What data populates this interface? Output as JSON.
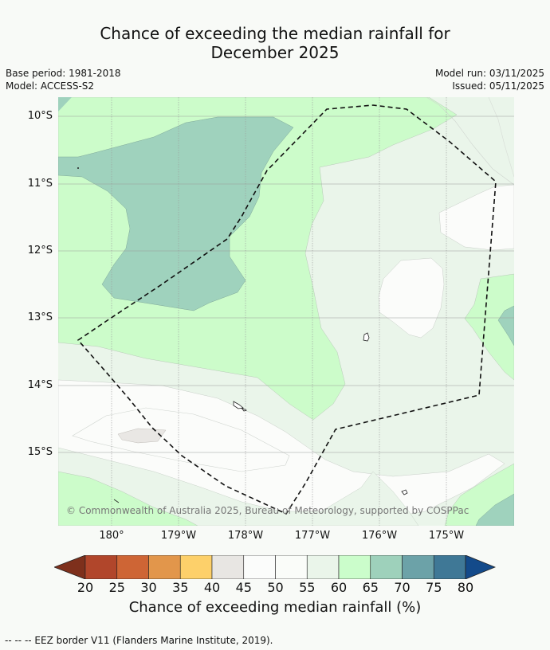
{
  "title": {
    "line1": "Chance of exceeding the median rainfall for",
    "line2": "December 2025"
  },
  "info": {
    "base_period": "Base period: 1981-2018",
    "model": "Model: ACCESS-S2",
    "model_run": "Model run: 03/11/2025",
    "issued": "Issued: 05/11/2025"
  },
  "map": {
    "lat_labels": [
      "10°S",
      "11°S",
      "12°S",
      "13°S",
      "14°S",
      "15°S"
    ],
    "lon_labels": [
      "180°",
      "179°W",
      "178°W",
      "177°W",
      "176°W",
      "175°W"
    ],
    "copyright": "© Commonwealth of Australia 2025, Bureau of Meteorology, supported by COSPPac",
    "colors": {
      "c45_50": "#fbfcfa",
      "c40_45": "#e9e7e4",
      "c55_60": "#eaf5ea",
      "c60_65": "#ccfcca",
      "c65_70": "#9fd2bd",
      "c70_75": "#6fa3a8"
    }
  },
  "colorbar": {
    "ticks": [
      "20",
      "25",
      "30",
      "35",
      "40",
      "45",
      "50",
      "55",
      "60",
      "65",
      "70",
      "75",
      "80"
    ],
    "colors": [
      "#7e301c",
      "#b1462b",
      "#ce6535",
      "#e2964b",
      "#fdd06a",
      "#e8e6e3",
      "#fbfcfb",
      "#fafcf9",
      "#eaf5ea",
      "#cbfdcb",
      "#9ed1bb",
      "#6ca2a8",
      "#3f7896",
      "#134a8a"
    ],
    "label": "Chance of exceeding median rainfall (%)"
  },
  "footer": "--  --  -- EEZ border V11 (Flanders Marine Institute, 2019)."
}
